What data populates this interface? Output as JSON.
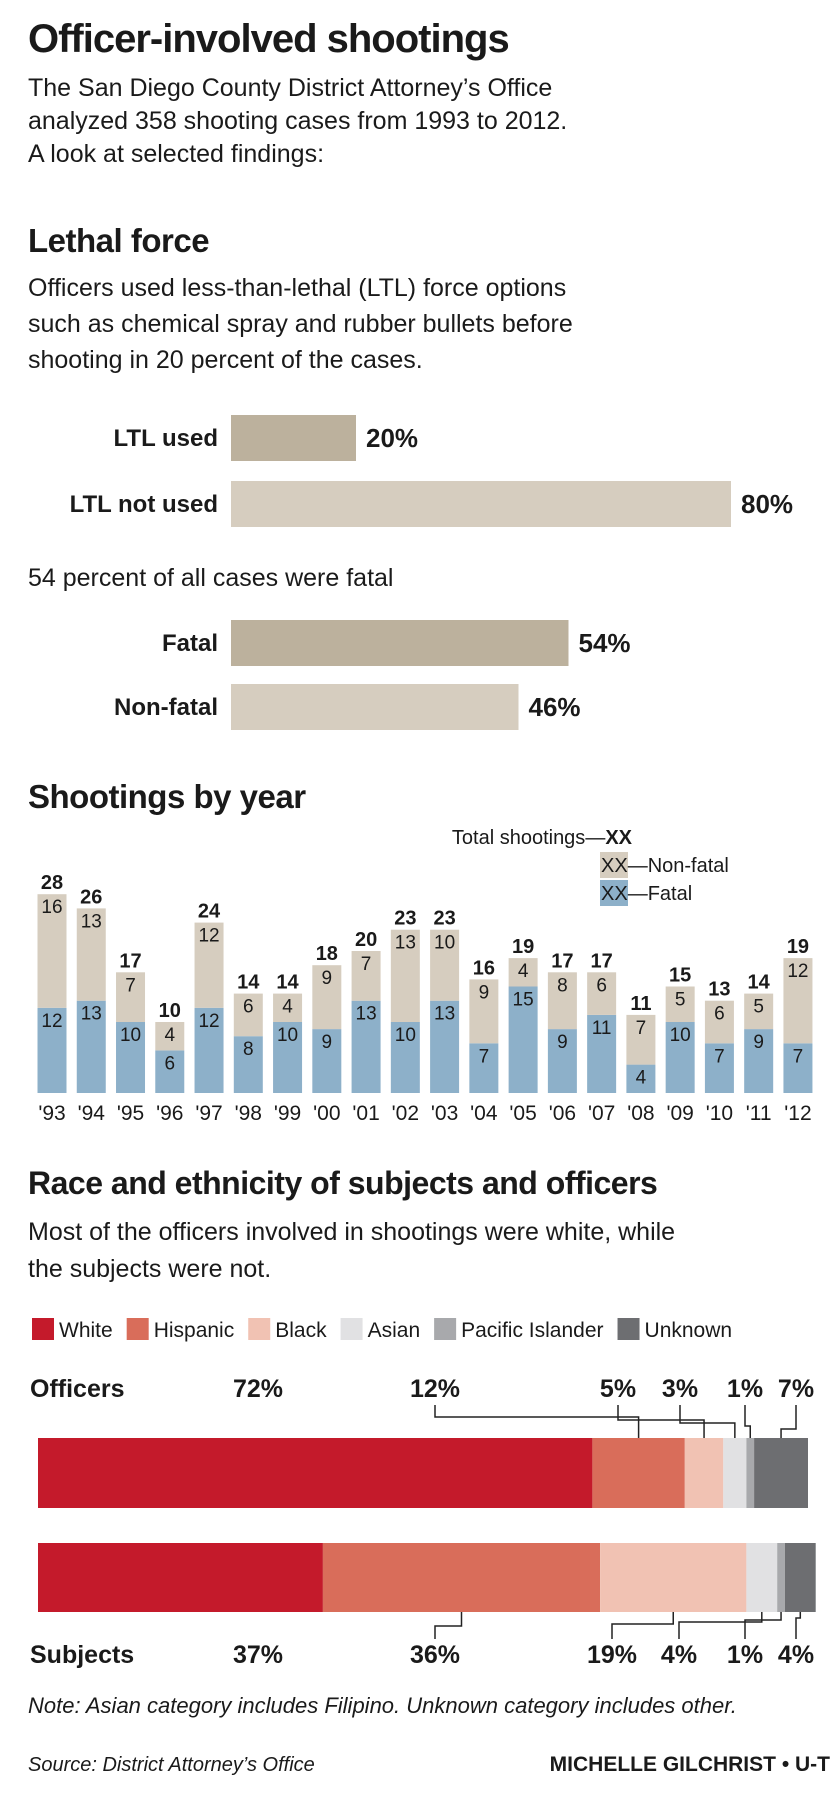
{
  "header": {
    "title": "Officer-involved shootings",
    "subtitle": [
      "The San Diego County District Attorney’s Office",
      "analyzed 358 shooting cases from 1993 to 2012.",
      "A look at selected findings:"
    ]
  },
  "chart_data": [
    {
      "type": "hbar",
      "title": "Lethal force",
      "description": [
        "Officers used less-than-lethal (LTL) force options",
        "such as chemical spray and rubber bullets before",
        "shooting in 20 percent of the cases."
      ],
      "categories": [
        "LTL used",
        "LTL not used"
      ],
      "values": [
        20,
        80
      ],
      "value_labels": [
        "20%",
        "80%"
      ],
      "colors": [
        "#bcb19d",
        "#d6cdbf"
      ]
    },
    {
      "type": "hbar",
      "subtitle": "54 percent of all cases were fatal",
      "categories": [
        "Fatal",
        "Non-fatal"
      ],
      "values": [
        54,
        46
      ],
      "value_labels": [
        "54%",
        "46%"
      ],
      "colors": [
        "#bcb19d",
        "#d6cdbf"
      ]
    },
    {
      "type": "stacked_bar",
      "title": "Shootings by year",
      "legend": {
        "total_label": "Total shootings",
        "separator": "—",
        "placeholder": "XX"
      },
      "categories": [
        "'93",
        "'94",
        "'95",
        "'96",
        "'97",
        "'98",
        "'99",
        "'00",
        "'01",
        "'02",
        "'03",
        "'04",
        "'05",
        "'06",
        "'07",
        "'08",
        "'09",
        "'10",
        "'11",
        "'12"
      ],
      "series": [
        {
          "name": "Fatal",
          "color": "#8db0c9",
          "values": [
            12,
            13,
            10,
            6,
            12,
            8,
            10,
            9,
            13,
            10,
            13,
            7,
            15,
            9,
            11,
            4,
            10,
            7,
            9,
            7
          ]
        },
        {
          "name": "Non-fatal",
          "color": "#d6cdbf",
          "values": [
            16,
            13,
            7,
            4,
            12,
            6,
            4,
            9,
            7,
            13,
            10,
            9,
            4,
            8,
            6,
            7,
            5,
            6,
            5,
            12
          ]
        }
      ],
      "totals": [
        28,
        26,
        17,
        10,
        24,
        14,
        14,
        18,
        20,
        23,
        23,
        16,
        19,
        17,
        17,
        11,
        15,
        13,
        14,
        19
      ]
    },
    {
      "type": "stacked_hbar",
      "title": "Race and ethnicity of subjects and officers",
      "description": [
        "Most of the officers involved in shootings were white, while",
        "the subjects were not."
      ],
      "categories": [
        "Officers",
        "Subjects"
      ],
      "series": [
        {
          "name": "White",
          "color": "#c41a2b",
          "values": [
            72,
            37
          ],
          "value_labels": [
            "72%",
            "37%"
          ]
        },
        {
          "name": "Hispanic",
          "color": "#d96d5a",
          "values": [
            12,
            36
          ],
          "value_labels": [
            "12%",
            "36%"
          ]
        },
        {
          "name": "Black",
          "color": "#f1c2b3",
          "values": [
            5,
            19
          ],
          "value_labels": [
            "5%",
            "19%"
          ]
        },
        {
          "name": "Asian",
          "color": "#e1e1e3",
          "values": [
            3,
            4
          ],
          "value_labels": [
            "3%",
            "4%"
          ]
        },
        {
          "name": "Pacific Islander",
          "color": "#a8a9ac",
          "values": [
            1,
            1
          ],
          "value_labels": [
            "1%",
            "1%"
          ]
        },
        {
          "name": "Unknown",
          "color": "#6d6e71",
          "values": [
            7,
            4
          ],
          "value_labels": [
            "7%",
            "4%"
          ]
        }
      ]
    }
  ],
  "footer": {
    "note": "Note: Asian category includes Filipino. Unknown category includes other.",
    "source": "Source: District Attorney’s Office",
    "credit": "MICHELLE GILCHRIST • U-T"
  }
}
